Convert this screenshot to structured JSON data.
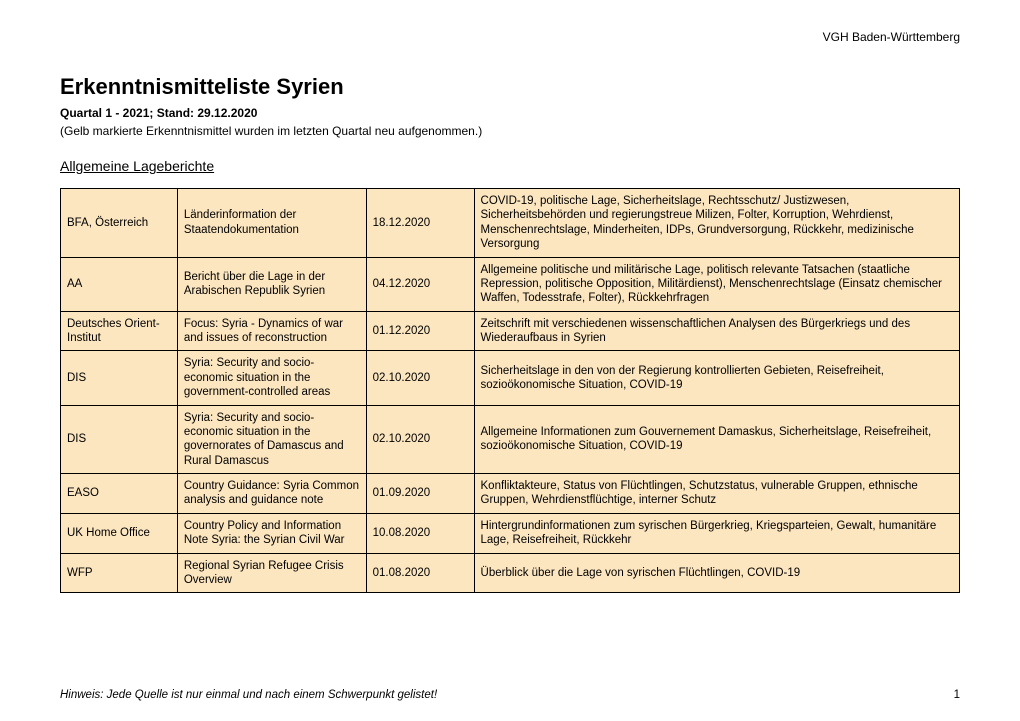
{
  "header": {
    "court": "VGH Baden-Württemberg"
  },
  "document": {
    "title": "Erkenntnismitteliste Syrien",
    "subtitle": "Quartal 1 - 2021; Stand: 29.12.2020",
    "note": "(Gelb markierte Erkenntnismittel wurden im letzten Quartal neu aufgenommen.)",
    "section_heading": "Allgemeine Lageberichte"
  },
  "table": {
    "background_color": "#fce6c0",
    "border_color": "#000000",
    "columns": [
      "source",
      "title",
      "date",
      "description"
    ],
    "col_widths_pct": [
      13,
      21,
      12,
      54
    ],
    "font_size_pt": 11.5,
    "rows": [
      {
        "source": "BFA, Österreich",
        "title": "Länderinformation der Staatendokumentation",
        "date": "18.12.2020",
        "description": "COVID-19, politische Lage, Sicherheitslage, Rechtsschutz/ Justizwesen, Sicherheitsbehörden und regierungstreue Milizen, Folter, Korruption, Wehrdienst, Menschenrechtslage, Minderheiten, IDPs, Grundversorgung, Rückkehr, medizinische Versorgung"
      },
      {
        "source": "AA",
        "title": "Bericht über die Lage in der Arabischen Republik Syrien",
        "date": "04.12.2020",
        "description": "Allgemeine politische und militärische Lage, politisch relevante Tatsachen (staatliche Repression, politische Opposition, Militärdienst), Menschenrechtslage (Einsatz chemischer Waffen, Todesstrafe, Folter), Rückkehrfragen"
      },
      {
        "source": "Deutsches Orient-Institut",
        "title": "Focus: Syria - Dynamics of war and issues of reconstruction",
        "date": "01.12.2020",
        "description": "Zeitschrift mit verschiedenen wissenschaftlichen Analysen des Bürgerkriegs und des Wiederaufbaus in Syrien"
      },
      {
        "source": "DIS",
        "title": "Syria: Security and socio-economic situation in the government-controlled areas",
        "date": "02.10.2020",
        "description": "Sicherheitslage in den von der Regierung kontrollierten Gebieten, Reisefreiheit, sozioökonomische Situation, COVID-19"
      },
      {
        "source": "DIS",
        "title": "Syria: Security and socio-economic situation in the governorates of Damascus and Rural Damascus",
        "date": "02.10.2020",
        "description": "Allgemeine Informationen zum Gouvernement Damaskus, Sicherheitslage, Reisefreiheit, sozioökonomische Situation, COVID-19"
      },
      {
        "source": "EASO",
        "title": "Country Guidance: Syria Common analysis and guidance note",
        "date": "01.09.2020",
        "description": "Konfliktakteure, Status von Flüchtlingen, Schutzstatus, vulnerable Gruppen, ethnische Gruppen, Wehrdienstflüchtige, interner Schutz"
      },
      {
        "source": "UK Home Office",
        "title": "Country Policy and Information Note Syria: the Syrian Civil War",
        "date": "10.08.2020",
        "description": "Hintergrundinformationen zum syrischen Bürgerkrieg, Kriegsparteien, Gewalt, humanitäre Lage, Reisefreiheit, Rückkehr"
      },
      {
        "source": "WFP",
        "title": "Regional Syrian Refugee Crisis Overview",
        "date": "01.08.2020",
        "description": "Überblick über die Lage von syrischen Flüchtlingen, COVID-19"
      }
    ]
  },
  "footer": {
    "hint": "Hinweis: Jede Quelle ist nur einmal und nach einem Schwerpunkt gelistet!",
    "page_number": "1"
  }
}
